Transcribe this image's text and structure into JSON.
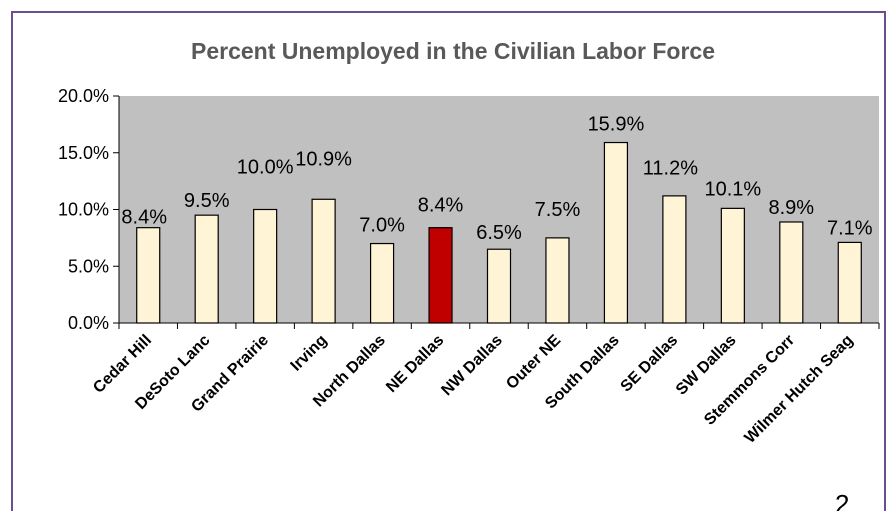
{
  "chart_data": {
    "type": "bar",
    "title": "Percent Unemployed in the Civilian Labor Force",
    "xlabel": "",
    "ylabel": "",
    "ylim": [
      0,
      20
    ],
    "yticks": [
      "0.0%",
      "5.0%",
      "10.0%",
      "15.0%",
      "20.0%"
    ],
    "categories": [
      "Cedar Hill",
      "DeSoto Lanc",
      "Grand Prairie",
      "Irving",
      "North Dallas",
      "NE Dallas",
      "NW Dallas",
      "Outer NE",
      "South Dallas",
      "SE Dallas",
      "SW Dallas",
      "Stemmons Corr",
      "Wilmer Hutch Seag"
    ],
    "values": [
      8.4,
      9.5,
      10.0,
      10.9,
      7.0,
      8.4,
      6.5,
      7.5,
      15.9,
      11.2,
      10.1,
      8.9,
      7.1
    ],
    "data_labels": [
      "8.4%",
      "9.5%",
      "10.0%",
      "10.9%",
      "7.0%",
      "8.4%",
      "6.5%",
      "7.5%",
      "15.9%",
      "11.2%",
      "10.1%",
      "8.9%",
      "7.1%"
    ],
    "highlight_category": "NE Dallas",
    "grid": false,
    "legend": "none",
    "colors": {
      "plot_background": "#c0c0c0",
      "bar_fill": "#fff5d6",
      "highlight_fill": "#c00000",
      "bar_stroke": "#000000",
      "frame_border": "#6b4e8e",
      "title_color": "#595959"
    }
  },
  "page_number": "2"
}
